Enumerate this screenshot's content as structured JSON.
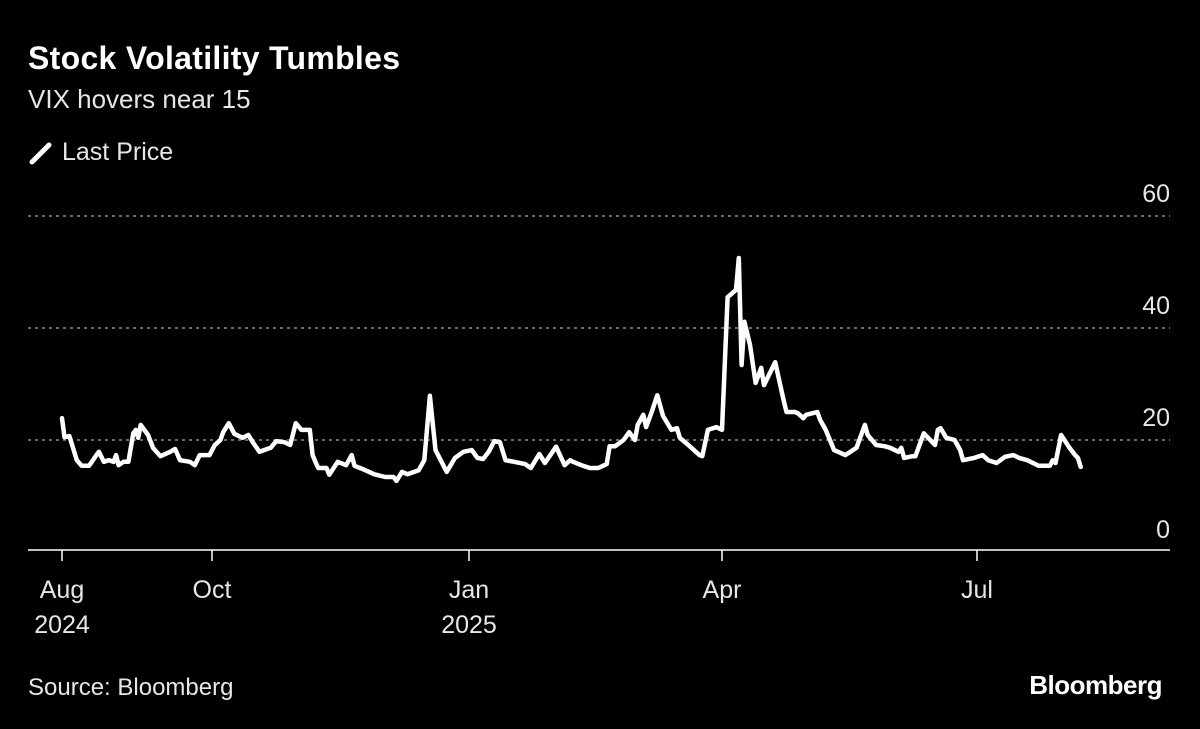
{
  "title": "Stock Volatility Tumbles",
  "subtitle": "VIX hovers near 15",
  "source": "Source: Bloomberg",
  "logo": "Bloomberg",
  "colors": {
    "background": "#000000",
    "line": "#ffffff",
    "grid": "#8c8c8c",
    "text": "#e6e6e6"
  },
  "chart_data": {
    "type": "line",
    "legend": {
      "position": "top-left",
      "entries": [
        "Last Price"
      ],
      "icon": "slash-line-icon"
    },
    "ylim": [
      0,
      60
    ],
    "yticks": [
      {
        "value": 0,
        "label": "0"
      },
      {
        "value": 20,
        "label": "20"
      },
      {
        "value": 40,
        "label": "40"
      },
      {
        "value": 60,
        "label": "60"
      }
    ],
    "grid": true,
    "xticks": [
      {
        "date": "2024-08-01",
        "label": "Aug",
        "sublabel": "2024"
      },
      {
        "date": "2024-10-01",
        "label": "Oct",
        "sublabel": ""
      },
      {
        "date": "2025-01-01",
        "label": "Jan",
        "sublabel": "2025"
      },
      {
        "date": "2025-04-01",
        "label": "Apr",
        "sublabel": ""
      },
      {
        "date": "2025-07-01",
        "label": "Jul",
        "sublabel": ""
      }
    ],
    "series": [
      {
        "name": "Last Price",
        "points": [
          [
            "2024-08-01",
            23.9
          ],
          [
            "2024-08-02",
            20.5
          ],
          [
            "2024-08-04",
            20.7
          ],
          [
            "2024-08-07",
            16.4
          ],
          [
            "2024-08-09",
            15.4
          ],
          [
            "2024-08-12",
            15.4
          ],
          [
            "2024-08-15",
            17.3
          ],
          [
            "2024-08-16",
            17.9
          ],
          [
            "2024-08-18",
            16.1
          ],
          [
            "2024-08-20",
            16.4
          ],
          [
            "2024-08-22",
            16.1
          ],
          [
            "2024-08-23",
            17.3
          ],
          [
            "2024-08-24",
            15.5
          ],
          [
            "2024-08-26",
            16.1
          ],
          [
            "2024-08-28",
            16.1
          ],
          [
            "2024-08-30",
            21.2
          ],
          [
            "2024-08-31",
            21.8
          ],
          [
            "2024-09-01",
            20.4
          ],
          [
            "2024-09-02",
            22.7
          ],
          [
            "2024-09-05",
            20.9
          ],
          [
            "2024-09-07",
            18.6
          ],
          [
            "2024-09-10",
            17.1
          ],
          [
            "2024-09-14",
            17.9
          ],
          [
            "2024-09-16",
            18.4
          ],
          [
            "2024-09-18",
            16.4
          ],
          [
            "2024-09-22",
            16.1
          ],
          [
            "2024-09-24",
            15.5
          ],
          [
            "2024-09-26",
            17.3
          ],
          [
            "2024-09-30",
            17.3
          ],
          [
            "2024-10-02",
            19.1
          ],
          [
            "2024-10-04",
            20.0
          ],
          [
            "2024-10-05",
            21.4
          ],
          [
            "2024-10-07",
            23.0
          ],
          [
            "2024-10-09",
            21.1
          ],
          [
            "2024-10-12",
            20.4
          ],
          [
            "2024-10-14",
            20.9
          ],
          [
            "2024-10-16",
            19.3
          ],
          [
            "2024-10-18",
            17.9
          ],
          [
            "2024-10-22",
            18.6
          ],
          [
            "2024-10-24",
            19.8
          ],
          [
            "2024-10-27",
            19.6
          ],
          [
            "2024-10-29",
            19.1
          ],
          [
            "2024-10-31",
            23.0
          ],
          [
            "2024-11-02",
            21.8
          ],
          [
            "2024-11-05",
            21.8
          ],
          [
            "2024-11-06",
            17.3
          ],
          [
            "2024-11-07",
            16.1
          ],
          [
            "2024-11-08",
            15.0
          ],
          [
            "2024-11-11",
            15.0
          ],
          [
            "2024-11-12",
            13.8
          ],
          [
            "2024-11-15",
            16.1
          ],
          [
            "2024-11-18",
            15.5
          ],
          [
            "2024-11-20",
            17.3
          ],
          [
            "2024-11-21",
            15.4
          ],
          [
            "2024-11-24",
            14.8
          ],
          [
            "2024-11-28",
            13.9
          ],
          [
            "2024-12-02",
            13.4
          ],
          [
            "2024-12-05",
            13.4
          ],
          [
            "2024-12-06",
            12.7
          ],
          [
            "2024-12-08",
            14.3
          ],
          [
            "2024-12-10",
            13.9
          ],
          [
            "2024-12-14",
            14.6
          ],
          [
            "2024-12-16",
            16.4
          ],
          [
            "2024-12-18",
            27.9
          ],
          [
            "2024-12-20",
            18.2
          ],
          [
            "2024-12-24",
            14.3
          ],
          [
            "2024-12-27",
            16.8
          ],
          [
            "2024-12-30",
            17.9
          ],
          [
            "2025-01-02",
            18.2
          ],
          [
            "2025-01-04",
            16.8
          ],
          [
            "2025-01-06",
            16.6
          ],
          [
            "2025-01-08",
            17.9
          ],
          [
            "2025-01-10",
            19.8
          ],
          [
            "2025-01-12",
            19.6
          ],
          [
            "2025-01-14",
            16.4
          ],
          [
            "2025-01-17",
            16.1
          ],
          [
            "2025-01-21",
            15.7
          ],
          [
            "2025-01-23",
            15.0
          ],
          [
            "2025-01-26",
            17.5
          ],
          [
            "2025-01-28",
            15.9
          ],
          [
            "2025-02-01",
            18.8
          ],
          [
            "2025-02-04",
            15.5
          ],
          [
            "2025-02-06",
            16.4
          ],
          [
            "2025-02-07",
            16.1
          ],
          [
            "2025-02-10",
            15.5
          ],
          [
            "2025-02-13",
            15.0
          ],
          [
            "2025-02-16",
            15.0
          ],
          [
            "2025-02-19",
            15.7
          ],
          [
            "2025-02-20",
            18.9
          ],
          [
            "2025-02-22",
            18.9
          ],
          [
            "2025-02-25",
            20.0
          ],
          [
            "2025-02-27",
            21.4
          ],
          [
            "2025-03-01",
            20.0
          ],
          [
            "2025-03-02",
            22.7
          ],
          [
            "2025-03-04",
            24.5
          ],
          [
            "2025-03-05",
            22.3
          ],
          [
            "2025-03-07",
            25.0
          ],
          [
            "2025-03-09",
            28.0
          ],
          [
            "2025-03-11",
            24.3
          ],
          [
            "2025-03-14",
            21.8
          ],
          [
            "2025-03-16",
            22.1
          ],
          [
            "2025-03-17",
            20.4
          ],
          [
            "2025-03-20",
            19.1
          ],
          [
            "2025-03-24",
            17.3
          ],
          [
            "2025-03-25",
            17.1
          ],
          [
            "2025-03-27",
            21.8
          ],
          [
            "2025-03-30",
            22.3
          ],
          [
            "2025-04-01",
            21.8
          ],
          [
            "2025-04-03",
            45.5
          ],
          [
            "2025-04-06",
            46.8
          ],
          [
            "2025-04-07",
            52.5
          ],
          [
            "2025-04-08",
            33.4
          ],
          [
            "2025-04-09",
            41.1
          ],
          [
            "2025-04-11",
            37.0
          ],
          [
            "2025-04-13",
            30.2
          ],
          [
            "2025-04-15",
            32.9
          ],
          [
            "2025-04-16",
            29.8
          ],
          [
            "2025-04-20",
            33.9
          ],
          [
            "2025-04-23",
            27.1
          ],
          [
            "2025-04-24",
            25.0
          ],
          [
            "2025-04-27",
            25.0
          ],
          [
            "2025-04-28",
            24.8
          ],
          [
            "2025-04-30",
            23.9
          ],
          [
            "2025-05-01",
            24.5
          ],
          [
            "2025-05-05",
            25.0
          ],
          [
            "2025-05-06",
            23.6
          ],
          [
            "2025-05-08",
            21.8
          ],
          [
            "2025-05-11",
            18.2
          ],
          [
            "2025-05-15",
            17.3
          ],
          [
            "2025-05-19",
            18.6
          ],
          [
            "2025-05-22",
            22.7
          ],
          [
            "2025-05-23",
            20.9
          ],
          [
            "2025-05-26",
            19.1
          ],
          [
            "2025-05-29",
            18.9
          ],
          [
            "2025-05-31",
            18.6
          ],
          [
            "2025-06-03",
            17.9
          ],
          [
            "2025-06-04",
            18.6
          ],
          [
            "2025-06-05",
            16.8
          ],
          [
            "2025-06-08",
            17.1
          ],
          [
            "2025-06-09",
            17.1
          ],
          [
            "2025-06-12",
            21.2
          ],
          [
            "2025-06-16",
            19.1
          ],
          [
            "2025-06-17",
            21.8
          ],
          [
            "2025-06-18",
            22.1
          ],
          [
            "2025-06-20",
            20.4
          ],
          [
            "2025-06-23",
            20.0
          ],
          [
            "2025-06-25",
            18.2
          ],
          [
            "2025-06-26",
            16.4
          ],
          [
            "2025-06-30",
            16.8
          ],
          [
            "2025-07-03",
            17.3
          ],
          [
            "2025-07-05",
            16.4
          ],
          [
            "2025-07-08",
            15.9
          ],
          [
            "2025-07-11",
            17.0
          ],
          [
            "2025-07-14",
            17.3
          ],
          [
            "2025-07-16",
            16.8
          ],
          [
            "2025-07-19",
            16.4
          ],
          [
            "2025-07-23",
            15.4
          ],
          [
            "2025-07-27",
            15.4
          ],
          [
            "2025-07-28",
            16.4
          ],
          [
            "2025-07-29",
            15.9
          ],
          [
            "2025-07-31",
            20.9
          ],
          [
            "2025-08-03",
            18.6
          ],
          [
            "2025-08-05",
            17.3
          ],
          [
            "2025-08-06",
            16.8
          ],
          [
            "2025-08-07",
            15.2
          ]
        ]
      }
    ]
  }
}
